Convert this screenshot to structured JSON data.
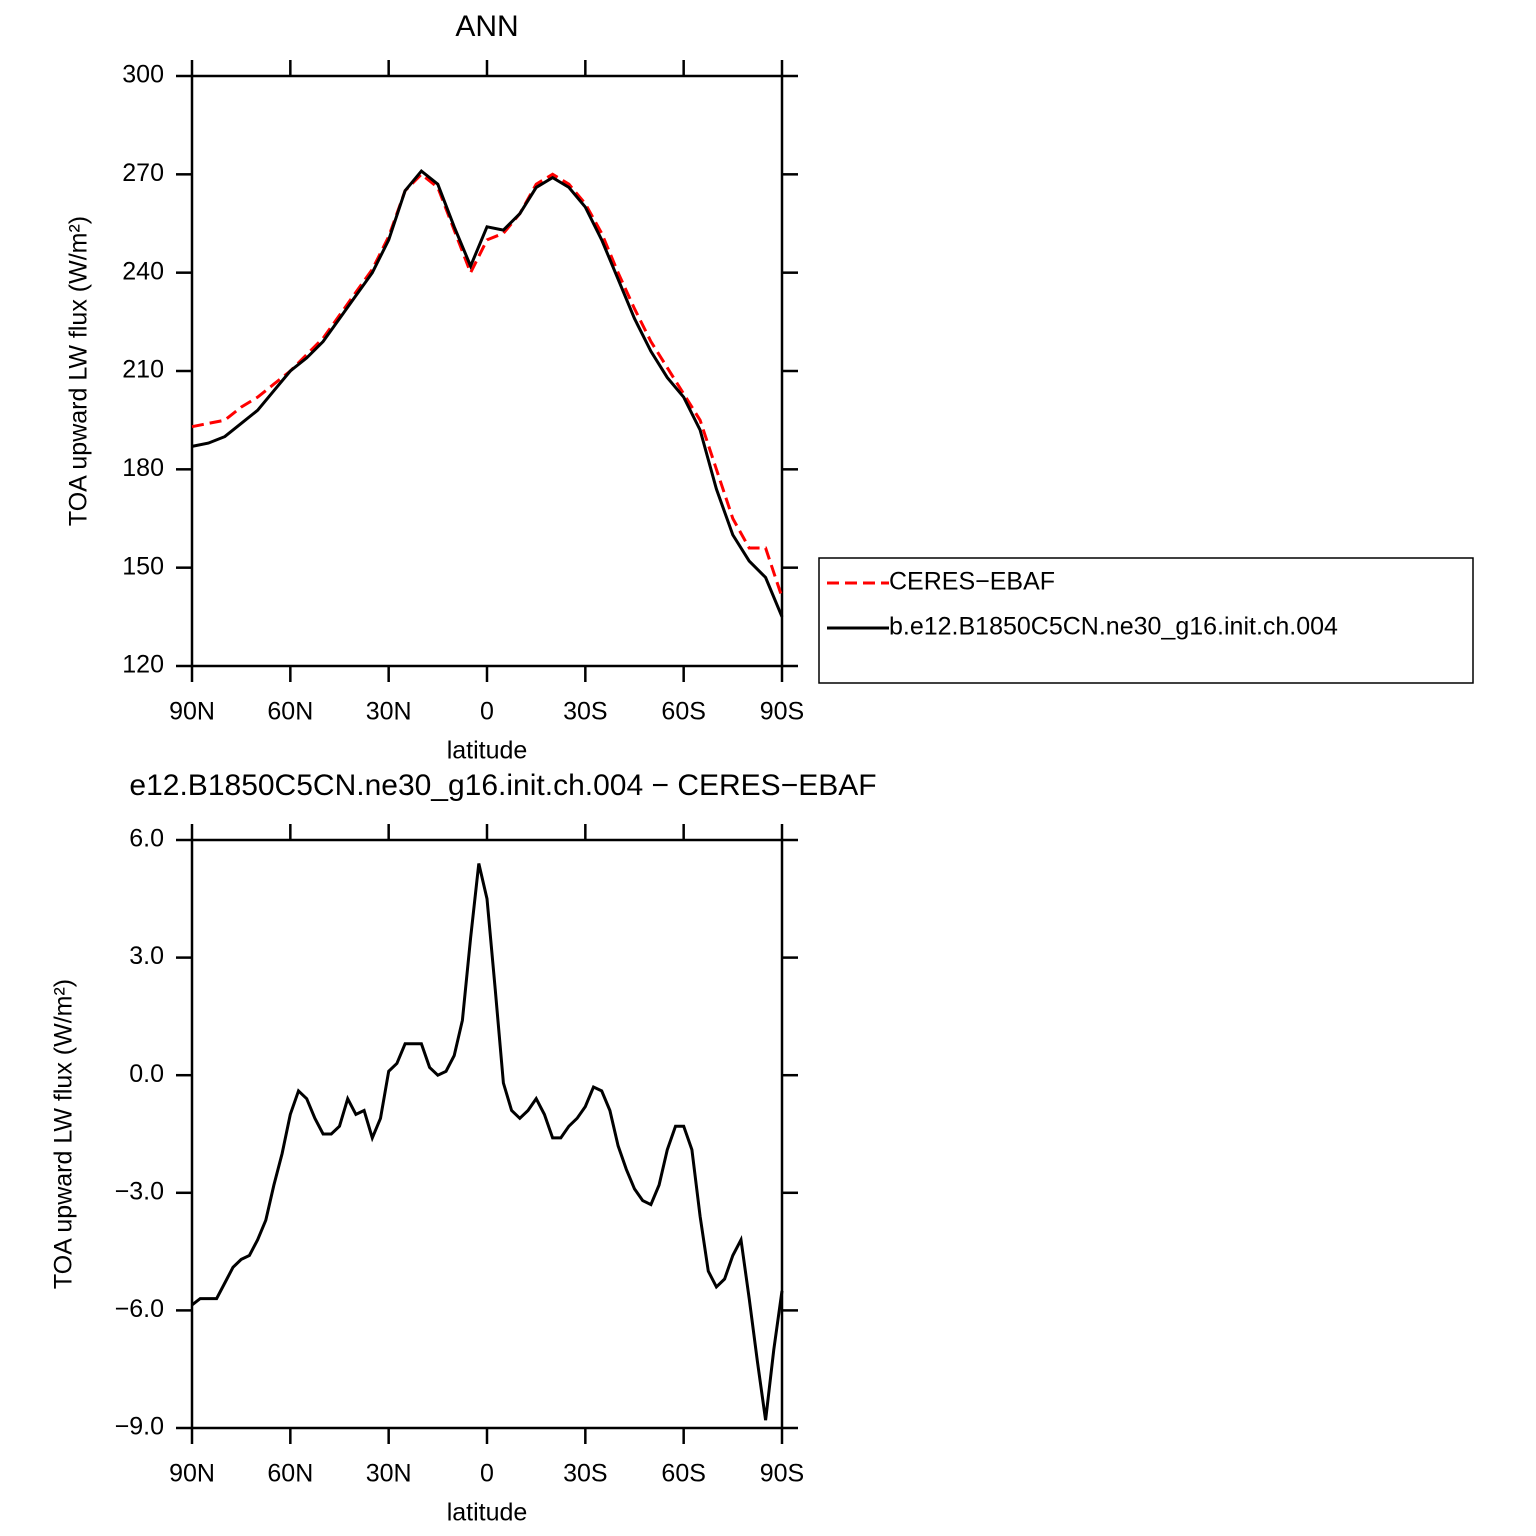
{
  "chart_data": [
    {
      "type": "line",
      "title": "ANN",
      "xlabel": "latitude",
      "ylabel": "TOA upward LW flux (W/m²)",
      "x": [
        90,
        85,
        80,
        75,
        70,
        65,
        60,
        55,
        50,
        45,
        40,
        35,
        30,
        25,
        20,
        15,
        10,
        5,
        0,
        -5,
        -10,
        -15,
        -20,
        -25,
        -30,
        -35,
        -40,
        -45,
        -50,
        -55,
        -60,
        -65,
        -70,
        -75,
        -80,
        -85,
        -90
      ],
      "xlim": [
        90,
        -90
      ],
      "xticks": [
        {
          "value": 90,
          "label": "90N"
        },
        {
          "value": 60,
          "label": "60N"
        },
        {
          "value": 30,
          "label": "30N"
        },
        0,
        {
          "value": -30,
          "label": "30S"
        },
        {
          "value": -60,
          "label": "60S"
        },
        {
          "value": -90,
          "label": "90S"
        }
      ],
      "ylim": [
        120,
        300
      ],
      "yticks": [
        120,
        150,
        180,
        210,
        240,
        270,
        300
      ],
      "legend": "right",
      "series": [
        {
          "name": "CERES−EBAF",
          "color": "#ff0000",
          "line_style": "dashed",
          "values": [
            193,
            194,
            195,
            199,
            202,
            206,
            210,
            215,
            220,
            227,
            234,
            241,
            251,
            265,
            270,
            266,
            253,
            240,
            250,
            252,
            258,
            267,
            270,
            267,
            261,
            252,
            240,
            229,
            219,
            211,
            203,
            195,
            180,
            165,
            156,
            156,
            141
          ]
        },
        {
          "name": "b.e12.B1850C5CN.ne30_g16.init.ch.004",
          "color": "#000000",
          "line_style": "solid",
          "values": [
            187,
            188,
            190,
            194,
            198,
            204,
            210,
            214,
            219,
            226,
            233,
            240,
            250,
            265,
            271,
            267,
            254,
            242,
            254,
            253,
            258,
            266,
            269,
            266,
            260,
            250,
            238,
            226,
            216,
            208,
            202,
            192,
            174,
            160,
            152,
            147,
            135
          ]
        }
      ]
    },
    {
      "type": "line",
      "title": "e12.B1850C5CN.ne30_g16.init.ch.004 − CERES−EBAF",
      "xlabel": "latitude",
      "ylabel": "TOA upward LW flux (W/m²)",
      "x": [
        90,
        87.5,
        85,
        82.5,
        80,
        77.5,
        75,
        72.5,
        70,
        67.5,
        65,
        62.5,
        60,
        57.5,
        55,
        52.5,
        50,
        47.5,
        45,
        42.5,
        40,
        37.5,
        35,
        32.5,
        30,
        27.5,
        25,
        22.5,
        20,
        17.5,
        15,
        12.5,
        10,
        7.5,
        5,
        2.5,
        0,
        -2.5,
        -5,
        -7.5,
        -10,
        -12.5,
        -15,
        -17.5,
        -20,
        -22.5,
        -25,
        -27.5,
        -30,
        -32.5,
        -35,
        -37.5,
        -40,
        -42.5,
        -45,
        -47.5,
        -50,
        -52.5,
        -55,
        -57.5,
        -60,
        -62.5,
        -65,
        -67.5,
        -70,
        -72.5,
        -75,
        -77.5,
        -80,
        -82.5,
        -85,
        -87.5,
        -90
      ],
      "xlim": [
        90,
        -90
      ],
      "xticks": [
        {
          "value": 90,
          "label": "90N"
        },
        {
          "value": 60,
          "label": "60N"
        },
        {
          "value": 30,
          "label": "30N"
        },
        0,
        {
          "value": -30,
          "label": "30S"
        },
        {
          "value": -60,
          "label": "60S"
        },
        {
          "value": -90,
          "label": "90S"
        }
      ],
      "ylim": [
        -9,
        6
      ],
      "yticks": [
        {
          "value": -9,
          "label": "−9.0"
        },
        {
          "value": -6,
          "label": "−6.0"
        },
        {
          "value": -3,
          "label": "−3.0"
        },
        {
          "value": 0,
          "label": "0.0"
        },
        {
          "value": 3,
          "label": "3.0"
        },
        {
          "value": 6,
          "label": "6.0"
        }
      ],
      "series": [
        {
          "color": "#000000",
          "line_style": "solid",
          "values": [
            -5.86,
            -5.7,
            -5.7,
            -5.7,
            -5.3,
            -4.9,
            -4.7,
            -4.6,
            -4.2,
            -3.7,
            -2.8,
            -2.0,
            -1.0,
            -0.4,
            -0.6,
            -1.1,
            -1.5,
            -1.5,
            -1.3,
            -0.6,
            -1.0,
            -0.9,
            -1.6,
            -1.1,
            0.1,
            0.3,
            0.8,
            0.8,
            0.8,
            0.2,
            0.0,
            0.1,
            0.5,
            1.4,
            3.5,
            5.4,
            4.5,
            2.2,
            -0.2,
            -0.9,
            -1.1,
            -0.9,
            -0.6,
            -1.0,
            -1.6,
            -1.6,
            -1.3,
            -1.1,
            -0.8,
            -0.3,
            -0.4,
            -0.9,
            -1.8,
            -2.4,
            -2.9,
            -3.2,
            -3.3,
            -2.8,
            -1.9,
            -1.3,
            -1.3,
            -1.9,
            -3.6,
            -5.0,
            -5.4,
            -5.2,
            -4.6,
            -4.2,
            -5.7,
            -7.3,
            -8.8,
            -7.0,
            -5.5
          ]
        }
      ]
    }
  ]
}
